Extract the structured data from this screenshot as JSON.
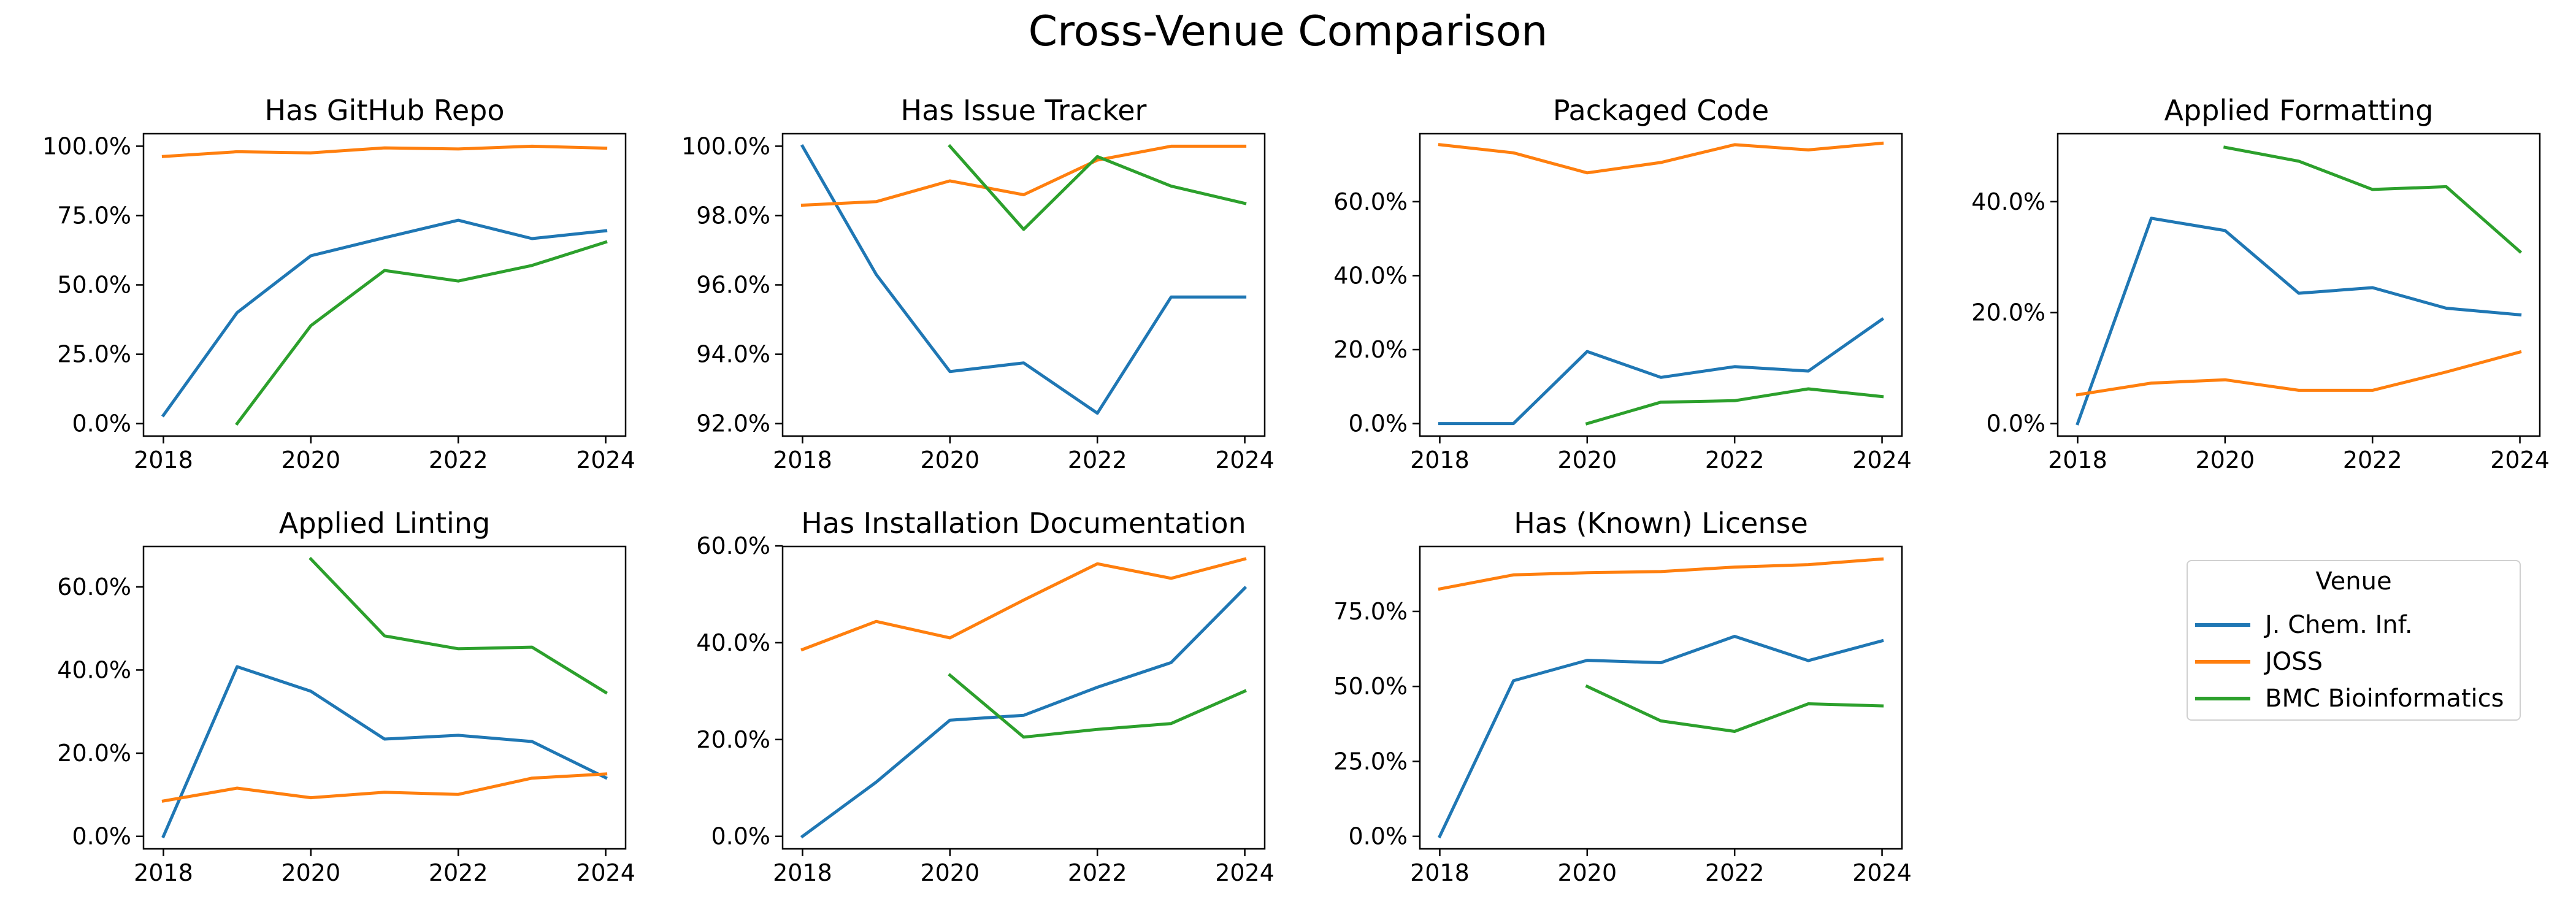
{
  "figure": {
    "title": "Cross-Venue Comparison"
  },
  "legend": {
    "title": "Venue",
    "entries": [
      {
        "name": "J. Chem. Inf.",
        "color": "#1f77b4"
      },
      {
        "name": "JOSS",
        "color": "#ff7f0e"
      },
      {
        "name": "BMC Bioinformatics",
        "color": "#2ca02c"
      }
    ],
    "placement": "right, second row"
  },
  "chart_data": [
    {
      "type": "line",
      "title": "Has GitHub Repo",
      "xlim": [
        2018,
        2024
      ],
      "ylim": [
        0,
        100
      ],
      "x_ticks": [
        2018,
        2020,
        2022,
        2024
      ],
      "y_ticks": [
        0,
        25,
        50,
        75,
        100
      ],
      "y_tick_labels": [
        "0.0%",
        "25.0%",
        "50.0%",
        "75.0%",
        "100.0%"
      ],
      "series": [
        {
          "name": "J. Chem. Inf.",
          "x": [
            2018,
            2019,
            2020,
            2021,
            2022,
            2023,
            2024
          ],
          "values": [
            3,
            40,
            60.5,
            67,
            73.3,
            66.7,
            69.5
          ]
        },
        {
          "name": "JOSS",
          "x": [
            2018,
            2019,
            2020,
            2021,
            2022,
            2023,
            2024
          ],
          "values": [
            96.3,
            98,
            97.6,
            99.4,
            99,
            100,
            99.3
          ]
        },
        {
          "name": "BMC Bioinformatics",
          "x": [
            2019,
            2020,
            2021,
            2022,
            2023,
            2024
          ],
          "values": [
            0,
            35.3,
            55.2,
            51.4,
            57,
            65.4
          ]
        }
      ]
    },
    {
      "type": "line",
      "title": "Has Issue Tracker",
      "xlim": [
        2018,
        2024
      ],
      "ylim": [
        92,
        100
      ],
      "x_ticks": [
        2018,
        2020,
        2022,
        2024
      ],
      "y_ticks": [
        92,
        94,
        96,
        98,
        100
      ],
      "y_tick_labels": [
        "92.0%",
        "94.0%",
        "96.0%",
        "98.0%",
        "100.0%"
      ],
      "series": [
        {
          "name": "J. Chem. Inf.",
          "x": [
            2018,
            2019,
            2020,
            2021,
            2022,
            2023,
            2024
          ],
          "values": [
            100,
            96.3,
            93.5,
            93.75,
            92.3,
            95.65,
            95.65
          ]
        },
        {
          "name": "JOSS",
          "x": [
            2018,
            2019,
            2020,
            2021,
            2022,
            2023,
            2024
          ],
          "values": [
            98.3,
            98.4,
            99,
            98.6,
            99.6,
            100,
            100
          ]
        },
        {
          "name": "BMC Bioinformatics",
          "x": [
            2020,
            2021,
            2022,
            2023,
            2024
          ],
          "values": [
            100,
            97.6,
            99.7,
            98.85,
            98.35
          ]
        }
      ]
    },
    {
      "type": "line",
      "title": "Packaged Code",
      "xlim": [
        2018,
        2024
      ],
      "ylim": [
        0,
        75
      ],
      "x_ticks": [
        2018,
        2020,
        2022,
        2024
      ],
      "y_ticks": [
        0,
        20,
        40,
        60
      ],
      "y_tick_labels": [
        "0.0%",
        "20.0%",
        "40.0%",
        "60.0%"
      ],
      "series": [
        {
          "name": "J. Chem. Inf.",
          "x": [
            2018,
            2019,
            2020,
            2021,
            2022,
            2023,
            2024
          ],
          "values": [
            0,
            0,
            19.5,
            12.5,
            15.4,
            14.2,
            28.2
          ]
        },
        {
          "name": "JOSS",
          "x": [
            2018,
            2019,
            2020,
            2021,
            2022,
            2023,
            2024
          ],
          "values": [
            75.4,
            73.2,
            67.8,
            70.6,
            75.4,
            74,
            75.8
          ]
        },
        {
          "name": "BMC Bioinformatics",
          "x": [
            2020,
            2021,
            2022,
            2023,
            2024
          ],
          "values": [
            0,
            5.8,
            6.2,
            9.4,
            7.3
          ]
        }
      ]
    },
    {
      "type": "line",
      "title": "Applied Formatting",
      "xlim": [
        2018,
        2024
      ],
      "ylim": [
        0,
        50
      ],
      "x_ticks": [
        2018,
        2020,
        2022,
        2024
      ],
      "y_ticks": [
        0,
        20,
        40
      ],
      "y_tick_labels": [
        "0.0%",
        "20.0%",
        "40.0%"
      ],
      "series": [
        {
          "name": "J. Chem. Inf.",
          "x": [
            2018,
            2019,
            2020,
            2021,
            2022,
            2023,
            2024
          ],
          "values": [
            0,
            37,
            34.8,
            23.5,
            24.5,
            20.8,
            19.6
          ]
        },
        {
          "name": "JOSS",
          "x": [
            2018,
            2019,
            2020,
            2021,
            2022,
            2023,
            2024
          ],
          "values": [
            5.2,
            7.3,
            7.9,
            6,
            6,
            9.3,
            12.9
          ]
        },
        {
          "name": "BMC Bioinformatics",
          "x": [
            2020,
            2021,
            2022,
            2023,
            2024
          ],
          "values": [
            49.8,
            47.3,
            42.2,
            42.7,
            31
          ]
        }
      ]
    },
    {
      "type": "line",
      "title": "Applied Linting",
      "xlim": [
        2018,
        2024
      ],
      "ylim": [
        0,
        66.7
      ],
      "x_ticks": [
        2018,
        2020,
        2022,
        2024
      ],
      "y_ticks": [
        0,
        20,
        40,
        60
      ],
      "y_tick_labels": [
        "0.0%",
        "20.0%",
        "40.0%",
        "60.0%"
      ],
      "series": [
        {
          "name": "J. Chem. Inf.",
          "x": [
            2018,
            2019,
            2020,
            2021,
            2022,
            2023,
            2024
          ],
          "values": [
            0,
            40.8,
            34.9,
            23.4,
            24.3,
            22.8,
            14.1
          ]
        },
        {
          "name": "JOSS",
          "x": [
            2018,
            2019,
            2020,
            2021,
            2022,
            2023,
            2024
          ],
          "values": [
            8.5,
            11.6,
            9.3,
            10.6,
            10.1,
            14,
            15
          ]
        },
        {
          "name": "BMC Bioinformatics",
          "x": [
            2020,
            2021,
            2022,
            2023,
            2024
          ],
          "values": [
            66.7,
            48.2,
            45.1,
            45.5,
            34.6
          ]
        }
      ]
    },
    {
      "type": "line",
      "title": "Has Installation Documentation",
      "xlim": [
        2018,
        2024
      ],
      "ylim": [
        0,
        57.3
      ],
      "x_ticks": [
        2018,
        2020,
        2022,
        2024
      ],
      "y_ticks": [
        0,
        20,
        40,
        60
      ],
      "y_tick_labels": [
        "0.0%",
        "20.0%",
        "40.0%",
        "60.0%"
      ],
      "series": [
        {
          "name": "J. Chem. Inf.",
          "x": [
            2018,
            2019,
            2020,
            2021,
            2022,
            2023,
            2024
          ],
          "values": [
            0,
            11.2,
            24,
            25,
            30.8,
            35.9,
            51.3
          ]
        },
        {
          "name": "JOSS",
          "x": [
            2018,
            2019,
            2020,
            2021,
            2022,
            2023,
            2024
          ],
          "values": [
            38.6,
            44.4,
            41,
            48.8,
            56.3,
            53.3,
            57.3
          ]
        },
        {
          "name": "BMC Bioinformatics",
          "x": [
            2020,
            2021,
            2022,
            2023,
            2024
          ],
          "values": [
            33.3,
            20.5,
            22.1,
            23.3,
            30
          ]
        }
      ]
    },
    {
      "type": "line",
      "title": "Has (Known) License",
      "xlim": [
        2018,
        2024
      ],
      "ylim": [
        0,
        92.5
      ],
      "x_ticks": [
        2018,
        2020,
        2022,
        2024
      ],
      "y_ticks": [
        0,
        25,
        50,
        75
      ],
      "y_tick_labels": [
        "0.0%",
        "25.0%",
        "50.0%",
        "75.0%"
      ],
      "series": [
        {
          "name": "J. Chem. Inf.",
          "x": [
            2018,
            2019,
            2020,
            2021,
            2022,
            2023,
            2024
          ],
          "values": [
            0,
            51.9,
            58.7,
            57.9,
            66.7,
            58.6,
            65.2
          ]
        },
        {
          "name": "JOSS",
          "x": [
            2018,
            2019,
            2020,
            2021,
            2022,
            2023,
            2024
          ],
          "values": [
            82.5,
            87.2,
            87.9,
            88.3,
            89.8,
            90.6,
            92.5
          ]
        },
        {
          "name": "BMC Bioinformatics",
          "x": [
            2020,
            2021,
            2022,
            2023,
            2024
          ],
          "values": [
            50,
            38.5,
            35,
            44.2,
            43.5
          ]
        }
      ]
    }
  ]
}
